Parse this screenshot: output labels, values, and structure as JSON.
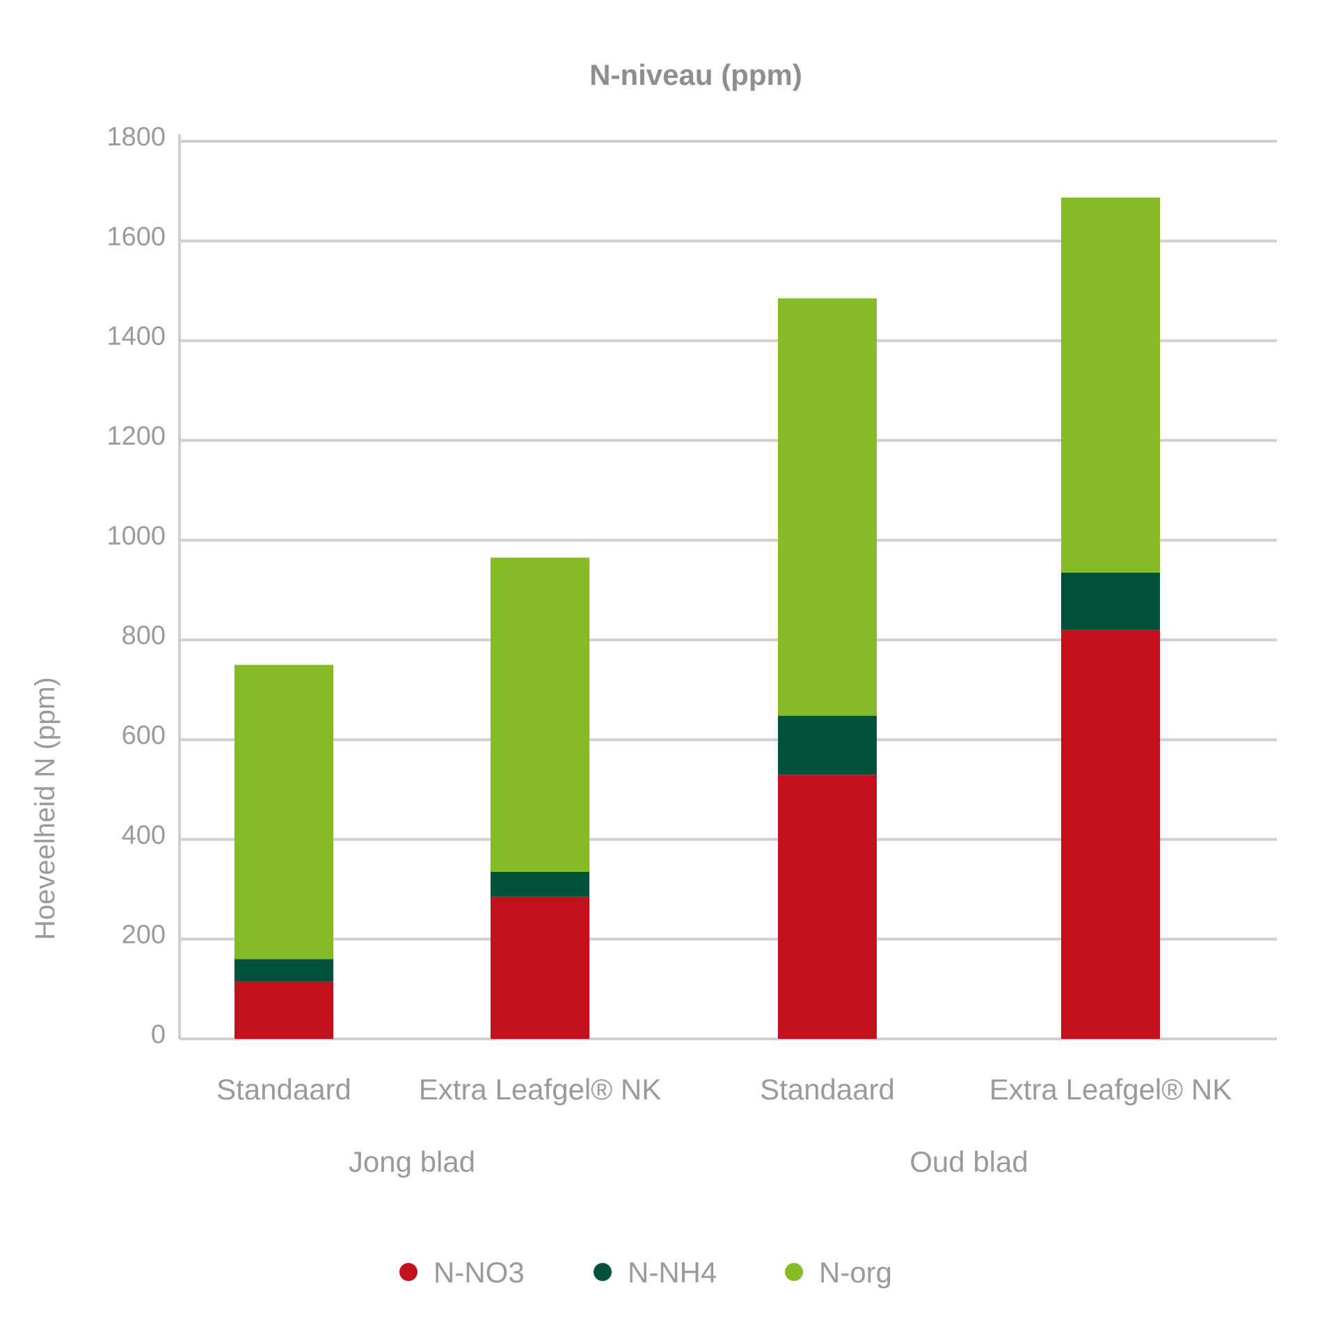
{
  "chart_data": {
    "type": "bar",
    "stacked": true,
    "title": "N-niveau (ppm)",
    "ylabel": "Hoeveelheid N (ppm)",
    "xlabel": "",
    "ylim": [
      0,
      1800
    ],
    "yticks": [
      0,
      200,
      400,
      600,
      800,
      1000,
      1200,
      1400,
      1600,
      1800
    ],
    "grid": true,
    "legend_position": "bottom",
    "categories": [
      "Standaard",
      "Extra Leafgel® NK",
      "Standaard",
      "Extra Leafgel® NK"
    ],
    "groups": [
      {
        "label": "Jong blad",
        "categories": [
          0,
          1
        ]
      },
      {
        "label": "Oud blad",
        "categories": [
          2,
          3
        ]
      }
    ],
    "series": [
      {
        "name": "N-NO3",
        "color": "#c2111c",
        "values": [
          115,
          285,
          530,
          820
        ]
      },
      {
        "name": "N-NH4",
        "color": "#00523b",
        "values": [
          45,
          50,
          118,
          115
        ]
      },
      {
        "name": "N-org",
        "color": "#84bb26",
        "values": [
          590,
          630,
          837,
          752
        ]
      }
    ]
  }
}
